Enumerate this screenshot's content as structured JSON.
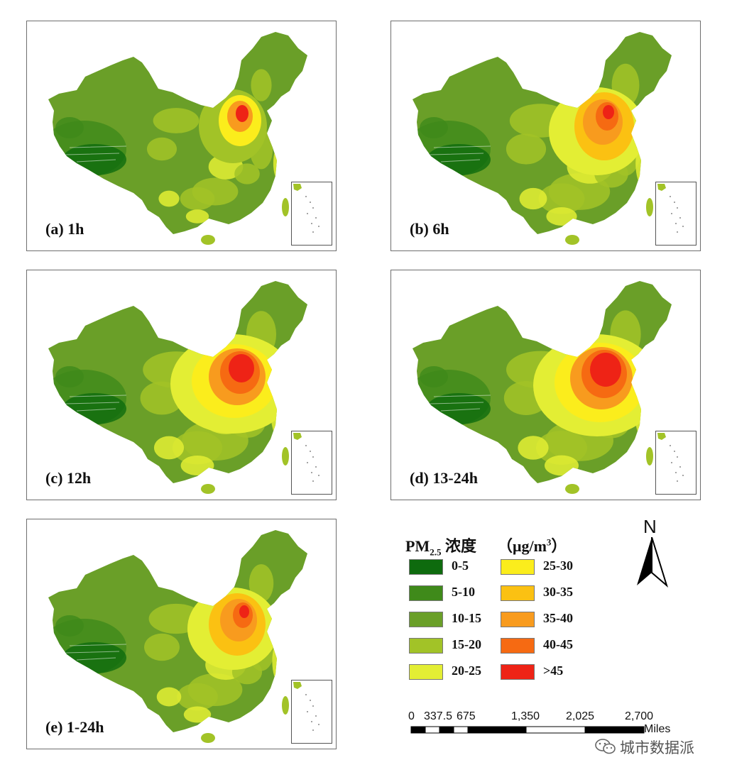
{
  "panels": [
    {
      "label": "(a) 1h",
      "intensity": 0.35
    },
    {
      "label": "(b) 6h",
      "intensity": 0.8
    },
    {
      "label": "(c) 12h",
      "intensity": 0.95
    },
    {
      "label": "(d) 13-24h",
      "intensity": 1.0
    },
    {
      "label": "(e) 1-24h",
      "intensity": 0.6
    }
  ],
  "legend": {
    "title_main": "PM",
    "title_sub": "2.5",
    "title_suffix": " 浓度",
    "units": "（μg/m",
    "units_sup": "3",
    "units_close": "）",
    "classes": [
      {
        "label": "0-5",
        "color": "#0e6b0e"
      },
      {
        "label": "5-10",
        "color": "#3f8a1a"
      },
      {
        "label": "10-15",
        "color": "#6a9f28"
      },
      {
        "label": "15-20",
        "color": "#a2c327"
      },
      {
        "label": "20-25",
        "color": "#e3ee34"
      },
      {
        "label": "25-30",
        "color": "#fbed1c"
      },
      {
        "label": "30-35",
        "color": "#fbc112"
      },
      {
        "label": "35-40",
        "color": "#f89b1e"
      },
      {
        "label": "40-45",
        "color": "#f66a12"
      },
      {
        "label": ">45",
        "color": "#ee2316"
      }
    ]
  },
  "north_arrow": {
    "label": "N"
  },
  "scale_bar": {
    "ticks": [
      "0",
      "337.5",
      "675",
      "1,350",
      "2,025",
      "2,700"
    ],
    "unit": "Miles"
  },
  "watermark": {
    "text": "城市数据派",
    "icon": "wechat-icon"
  }
}
